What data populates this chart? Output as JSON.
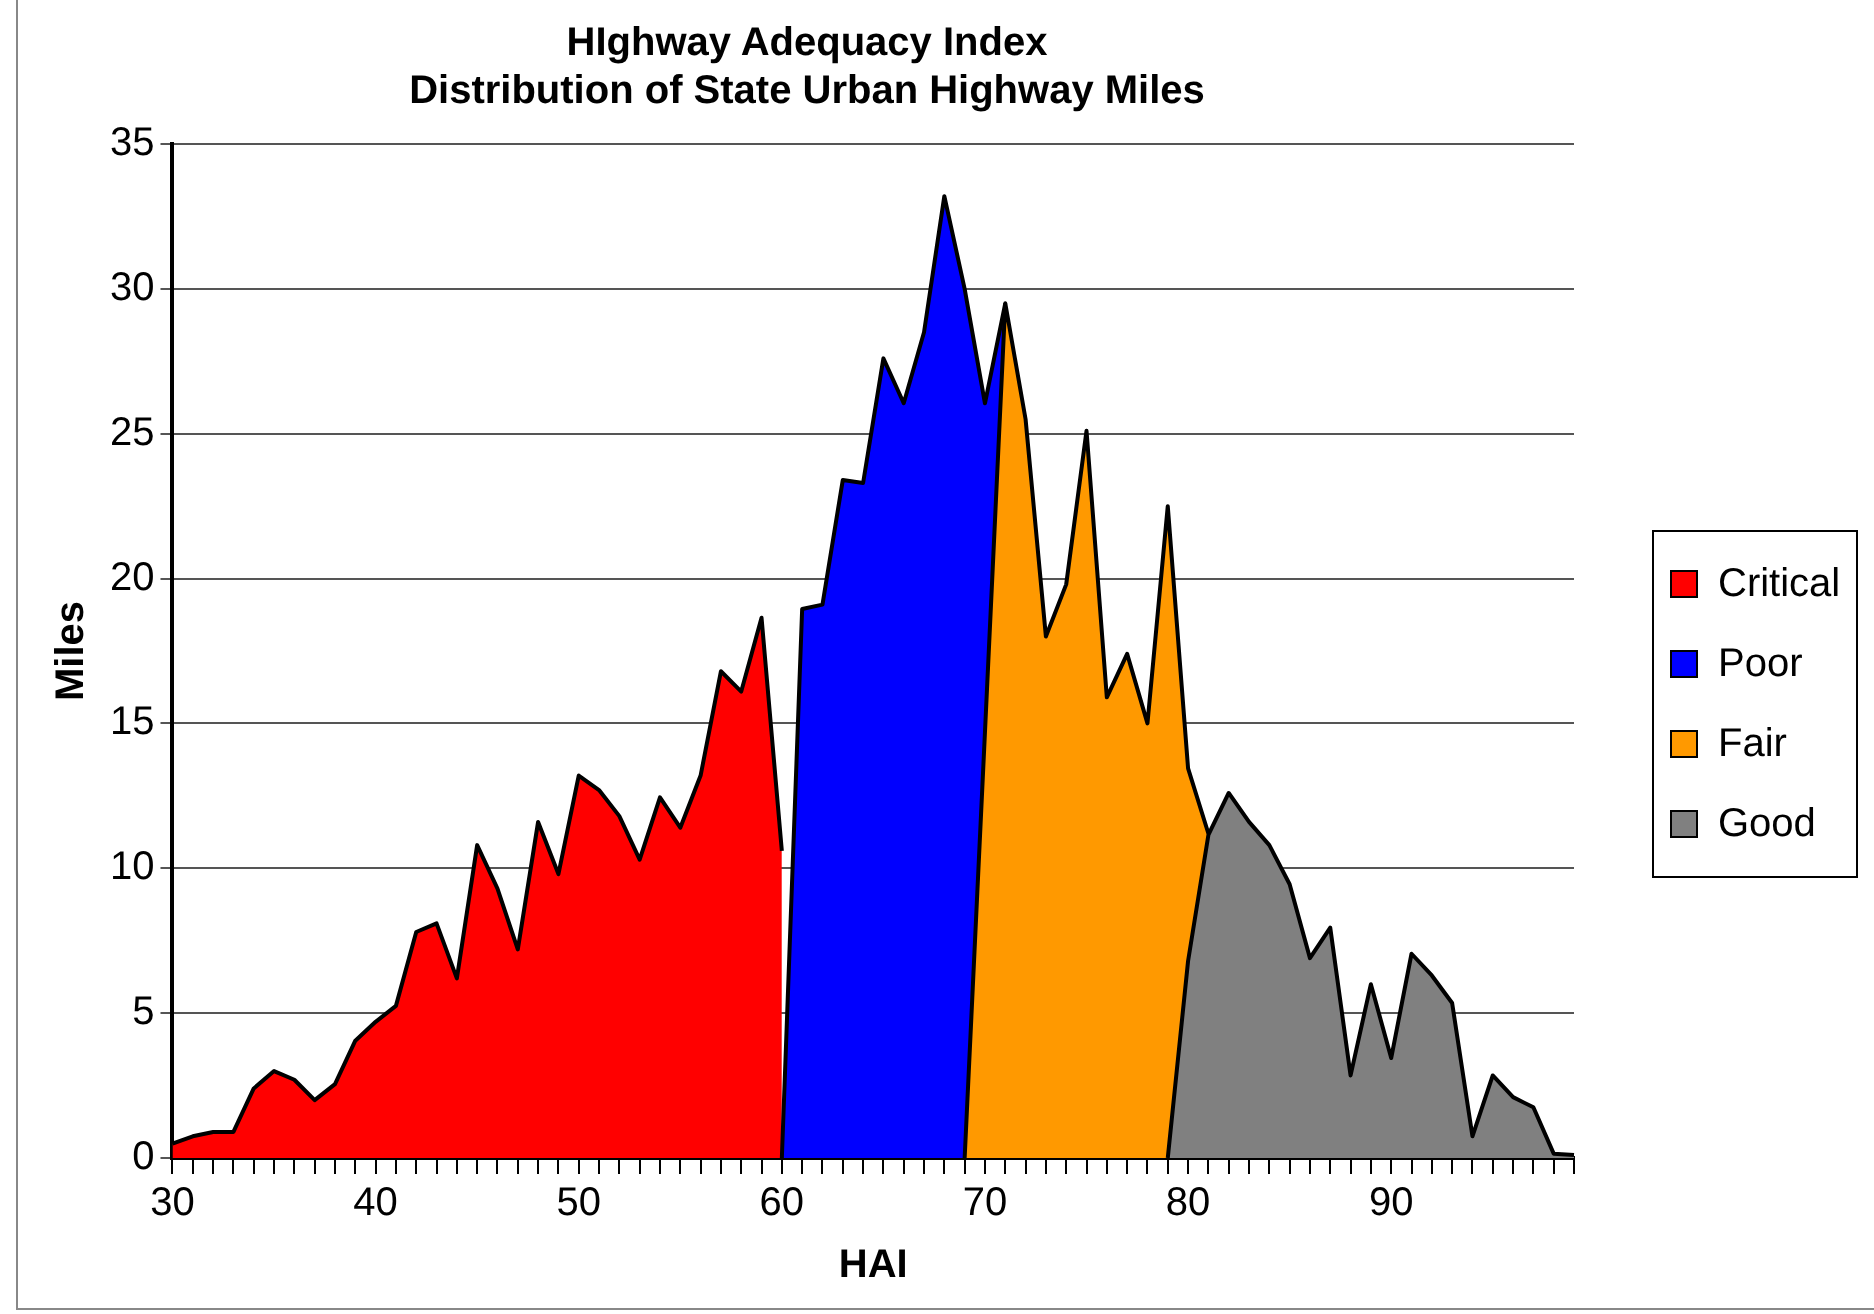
{
  "chart_data": {
    "type": "area",
    "title": "HIghway Adequacy Index",
    "subtitle": "Distribution of State Urban Highway Miles",
    "xlabel": "HAI",
    "ylabel": "Miles",
    "categories": [
      "30",
      null,
      null,
      null,
      null,
      null,
      null,
      null,
      null,
      null,
      "40",
      null,
      null,
      null,
      null,
      null,
      null,
      null,
      null,
      null,
      "50",
      null,
      null,
      null,
      null,
      null,
      null,
      null,
      null,
      null,
      "60",
      null,
      null,
      null,
      null,
      null,
      null,
      null,
      null,
      null,
      "70",
      null,
      null,
      null,
      null,
      null,
      null,
      null,
      null,
      null,
      "80",
      null,
      null,
      null,
      null,
      null,
      null,
      null,
      null,
      null,
      "90",
      null,
      null,
      null,
      null,
      null,
      null,
      null,
      null,
      null
    ],
    "series": [
      {
        "name": "Critical",
        "color": "#ff0000",
        "values": [
          0.5,
          0.75,
          0.9,
          0.9,
          2.4,
          3.0,
          2.7,
          2.0,
          2.55,
          4.05,
          4.7,
          5.25,
          7.8,
          8.1,
          6.2,
          10.8,
          9.3,
          7.2,
          11.6,
          9.8,
          13.2,
          12.7,
          11.8,
          10.3,
          12.45,
          11.4,
          13.2,
          16.8,
          16.1,
          18.65,
          10.6,
          null,
          null,
          null,
          null,
          null,
          null,
          null,
          null,
          null,
          null,
          null,
          null,
          null,
          null,
          null,
          null,
          null,
          null,
          null,
          null,
          null,
          null,
          null,
          null,
          null,
          null,
          null,
          null,
          null,
          null,
          null,
          null,
          null,
          null,
          null,
          null,
          null,
          null,
          null
        ]
      },
      {
        "name": "Poor",
        "color": "#0000ff",
        "values": [
          null,
          null,
          null,
          null,
          null,
          null,
          null,
          null,
          null,
          null,
          null,
          null,
          null,
          null,
          null,
          null,
          null,
          null,
          null,
          null,
          null,
          null,
          null,
          null,
          null,
          null,
          null,
          null,
          null,
          null,
          0,
          18.95,
          19.1,
          23.4,
          23.3,
          27.6,
          26.05,
          28.5,
          33.2,
          30.0,
          26.05,
          29.5,
          null,
          null,
          null,
          null,
          null,
          null,
          null,
          null,
          null,
          null,
          null,
          null,
          null,
          null,
          null,
          null,
          null,
          null,
          null,
          null,
          null,
          null,
          null,
          null,
          null,
          null,
          null,
          null
        ]
      },
      {
        "name": "Fair",
        "color": "#ff9900",
        "values": [
          null,
          null,
          null,
          null,
          null,
          null,
          null,
          null,
          null,
          null,
          null,
          null,
          null,
          null,
          null,
          null,
          null,
          null,
          null,
          null,
          null,
          null,
          null,
          null,
          null,
          null,
          null,
          null,
          null,
          null,
          null,
          null,
          null,
          null,
          null,
          null,
          null,
          null,
          null,
          0,
          14.7,
          29.5,
          25.5,
          18.0,
          19.8,
          25.1,
          15.9,
          17.4,
          15.0,
          22.5,
          13.45,
          11.2,
          null,
          null,
          null,
          null,
          null,
          null,
          null,
          null,
          null,
          null,
          null,
          null,
          null,
          null,
          null,
          null,
          null,
          null
        ]
      },
      {
        "name": "Good",
        "color": "#808080",
        "values": [
          null,
          null,
          null,
          null,
          null,
          null,
          null,
          null,
          null,
          null,
          null,
          null,
          null,
          null,
          null,
          null,
          null,
          null,
          null,
          null,
          null,
          null,
          null,
          null,
          null,
          null,
          null,
          null,
          null,
          null,
          null,
          null,
          null,
          null,
          null,
          null,
          null,
          null,
          null,
          null,
          null,
          null,
          null,
          null,
          null,
          null,
          null,
          null,
          null,
          0,
          6.8,
          11.15,
          12.6,
          11.6,
          10.8,
          9.45,
          6.9,
          7.95,
          2.85,
          6.0,
          3.45,
          7.05,
          6.3,
          5.35,
          0.75,
          2.85,
          2.1,
          1.75,
          0.15,
          0.1
        ]
      }
    ],
    "ylim": [
      0,
      35
    ],
    "yticks": [
      0,
      5,
      10,
      15,
      20,
      25,
      30,
      35
    ],
    "grid": "y",
    "legend": "right",
    "line_style": "solid",
    "marker": "none"
  }
}
